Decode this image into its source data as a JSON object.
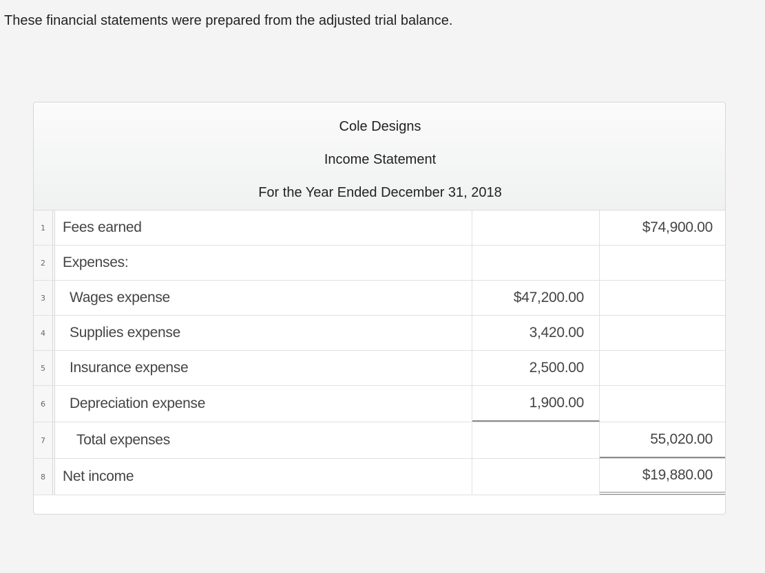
{
  "intro_text": "These financial statements were prepared from the adjusted trial balance.",
  "statement": {
    "company": "Cole Designs",
    "title": "Income Statement",
    "period": "For the Year Ended December 31, 2018"
  },
  "rows": [
    {
      "num": "1",
      "label": "Fees earned",
      "col_a": "",
      "col_b": "$74,900.00"
    },
    {
      "num": "2",
      "label": "Expenses:",
      "col_a": "",
      "col_b": ""
    },
    {
      "num": "3",
      "label": "Wages expense",
      "col_a": "$47,200.00",
      "col_b": ""
    },
    {
      "num": "4",
      "label": "Supplies expense",
      "col_a": "3,420.00",
      "col_b": ""
    },
    {
      "num": "5",
      "label": "Insurance expense",
      "col_a": "2,500.00",
      "col_b": ""
    },
    {
      "num": "6",
      "label": "Depreciation expense",
      "col_a": "1,900.00",
      "col_b": ""
    },
    {
      "num": "7",
      "label": "Total expenses",
      "col_a": "",
      "col_b": "55,020.00"
    },
    {
      "num": "8",
      "label": "Net income",
      "col_a": "",
      "col_b": "$19,880.00"
    }
  ]
}
